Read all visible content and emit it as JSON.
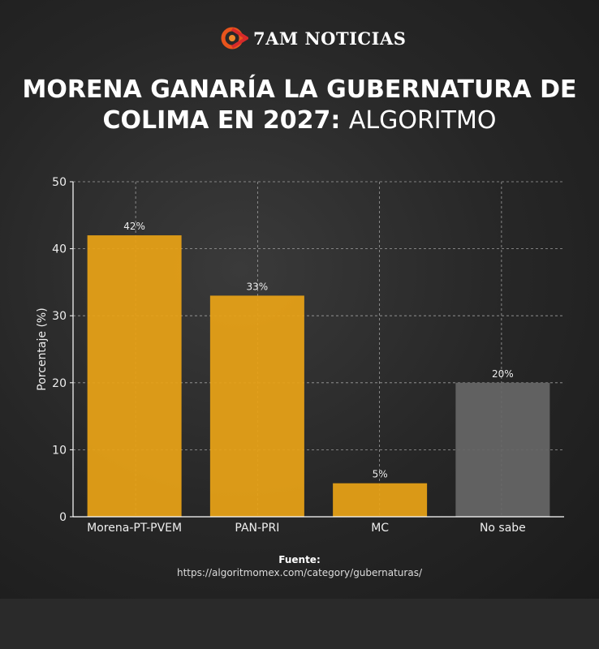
{
  "brand": {
    "name": "7AM NOTICIAS",
    "accent": "#e8541c"
  },
  "title": {
    "bold": "MORENA GANARÍA LA GUBERNATURA DE COLIMA EN 2027:",
    "light": "ALGORITMO"
  },
  "source": {
    "label": "Fuente:",
    "url": "https://algoritmomex.com/category/gubernaturas/"
  },
  "chart_data": {
    "type": "bar",
    "categories": [
      "Morena-PT-PVEM",
      "PAN-PRI",
      "MC",
      "No sabe"
    ],
    "values": [
      42,
      33,
      5,
      20
    ],
    "data_labels": [
      "42%",
      "33%",
      "5%",
      "20%"
    ],
    "colors": [
      "#e8a317",
      "#e8a317",
      "#e8a317",
      "#666666"
    ],
    "ylabel": "Porcentaje (%)",
    "xlabel": "",
    "ylim": [
      0,
      50
    ],
    "yticks": [
      0,
      10,
      20,
      30,
      40,
      50
    ],
    "grid": true
  }
}
